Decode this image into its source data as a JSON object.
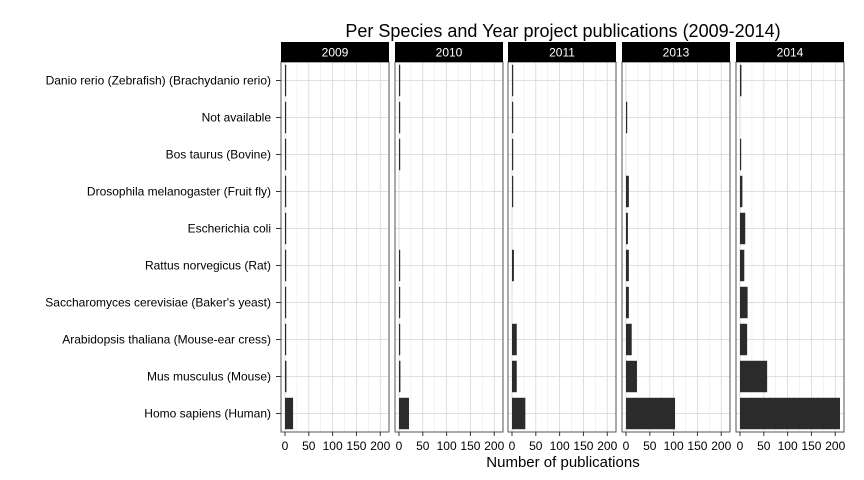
{
  "chart_data": {
    "type": "bar",
    "orientation": "horizontal",
    "title": "Per Species and Year project publications (2009-2014)",
    "xlabel": "Number of publications",
    "ylabel": "",
    "xlim": [
      0,
      210
    ],
    "xticks": [
      0,
      50,
      100,
      150,
      200
    ],
    "xtick_labels": [
      "0",
      "50",
      "100",
      "150",
      "200"
    ],
    "grid": true,
    "bar_color": "#2b2b2b",
    "strip_color": "#000000",
    "categories": [
      "Danio rerio (Zebrafish) (Brachydanio rerio)",
      "Not available",
      "Bos taurus (Bovine)",
      "Drosophila melanogaster (Fruit fly)",
      "Escherichia coli",
      "Rattus norvegicus (Rat)",
      "Saccharomyces cerevisiae (Baker's yeast)",
      "Arabidopsis thaliana (Mouse-ear cress)",
      "Mus musculus (Mouse)",
      "Homo sapiens (Human)"
    ],
    "panels": [
      {
        "year": "2009",
        "values": [
          1,
          2,
          1,
          1,
          1,
          2,
          2,
          2,
          3,
          17
        ]
      },
      {
        "year": "2010",
        "values": [
          2,
          2,
          1,
          0,
          0,
          1,
          1,
          2,
          3,
          21
        ]
      },
      {
        "year": "2011",
        "values": [
          1,
          1,
          2,
          1,
          0,
          4,
          0,
          10,
          10,
          28
        ]
      },
      {
        "year": "2013",
        "values": [
          0,
          2,
          0,
          6,
          4,
          6,
          6,
          12,
          23,
          103
        ]
      },
      {
        "year": "2014",
        "values": [
          3,
          0,
          2,
          5,
          11,
          9,
          16,
          15,
          57,
          210
        ]
      }
    ]
  }
}
